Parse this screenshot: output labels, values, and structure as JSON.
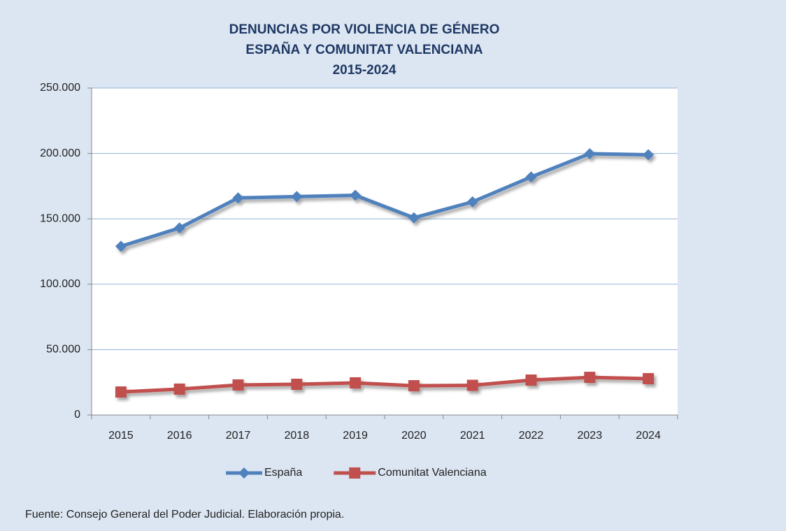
{
  "chart_data": {
    "type": "line",
    "title": "DENUNCIAS POR VIOLENCIA DE GÉNERO\nESPAÑA Y COMUNITAT VALENCIANA\n2015-2024",
    "categories": [
      "2015",
      "2016",
      "2017",
      "2018",
      "2019",
      "2020",
      "2021",
      "2022",
      "2023",
      "2024"
    ],
    "series": [
      {
        "name": "España",
        "color": "#4f81bd",
        "marker": "diamond",
        "values": [
          129000,
          143000,
          166000,
          167000,
          168000,
          150800,
          163000,
          182000,
          199800,
          199000
        ]
      },
      {
        "name": "Comunitat Valenciana",
        "color": "#c0504d",
        "marker": "square",
        "values": [
          17600,
          19800,
          23000,
          23500,
          24600,
          22400,
          22700,
          26700,
          28800,
          27800
        ]
      }
    ],
    "ylim": [
      0,
      250000
    ],
    "yticks": [
      0,
      {
        "value": 50000,
        "label": "50.000"
      },
      {
        "value": 100000,
        "label": "100.000"
      },
      {
        "value": 150000,
        "label": "150.000"
      },
      {
        "value": 200000,
        "label": "200.000"
      },
      {
        "value": 250000,
        "label": "250.000"
      }
    ],
    "grid": true,
    "legend": "bottom",
    "source": "Fuente:  Consejo General del Poder Judicial. Elaboración propia."
  }
}
